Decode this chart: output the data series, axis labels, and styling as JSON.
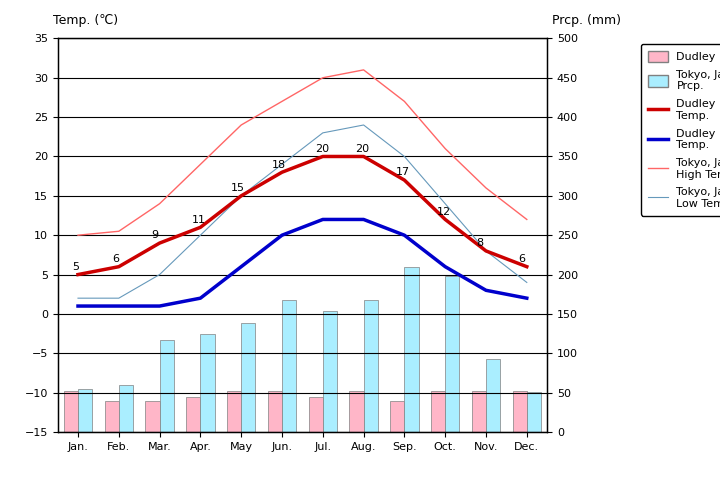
{
  "months": [
    "Jan.",
    "Feb.",
    "Mar.",
    "Apr.",
    "May",
    "Jun.",
    "Jul.",
    "Aug.",
    "Sep.",
    "Oct.",
    "Nov.",
    "Dec."
  ],
  "dudley_high": [
    5,
    6,
    9,
    11,
    15,
    18,
    20,
    20,
    17,
    12,
    8,
    6
  ],
  "dudley_low": [
    1,
    1,
    1,
    2,
    6,
    10,
    12,
    12,
    10,
    6,
    3,
    2
  ],
  "tokyo_high": [
    10,
    10.5,
    14,
    19,
    24,
    27,
    30,
    31,
    27,
    21,
    16,
    12
  ],
  "tokyo_low": [
    2,
    2,
    5,
    10,
    15,
    19,
    23,
    24,
    20,
    14,
    8,
    4
  ],
  "dudley_prcp": [
    52,
    40,
    40,
    45,
    52,
    52,
    45,
    52,
    40,
    52,
    52,
    52
  ],
  "tokyo_prcp": [
    55,
    60,
    117,
    125,
    138,
    168,
    154,
    168,
    210,
    198,
    93,
    51
  ],
  "title_left": "Temp. (℃)",
  "title_right": "Prcp. (mm)",
  "ylim_left": [
    -15,
    35
  ],
  "ylim_right": [
    0,
    500
  ],
  "bg_color": "#c0c0c0",
  "dudley_high_color": "#cc0000",
  "dudley_low_color": "#0000cc",
  "tokyo_high_color": "#ff6666",
  "tokyo_low_color": "#6699bb",
  "dudley_prcp_color": "#ffb6c8",
  "tokyo_prcp_color": "#aaeeff",
  "label_dudley_prcp": "Dudley Prcp.",
  "label_tokyo_prcp": "Tokyo, Japan\nPrcp.",
  "label_dudley_high": "Dudley High\nTemp.",
  "label_dudley_low": "Dudley Low\nTemp.",
  "label_tokyo_high": "Tokyo, Japan\nHigh Temp.",
  "label_tokyo_low": "Tokyo, Japan\nLow Temp.",
  "annotate_high_vals": [
    5,
    6,
    9,
    11,
    15,
    18,
    20,
    20,
    17,
    12,
    8,
    6
  ],
  "grid_color": "black",
  "grid_lw": 0.8
}
